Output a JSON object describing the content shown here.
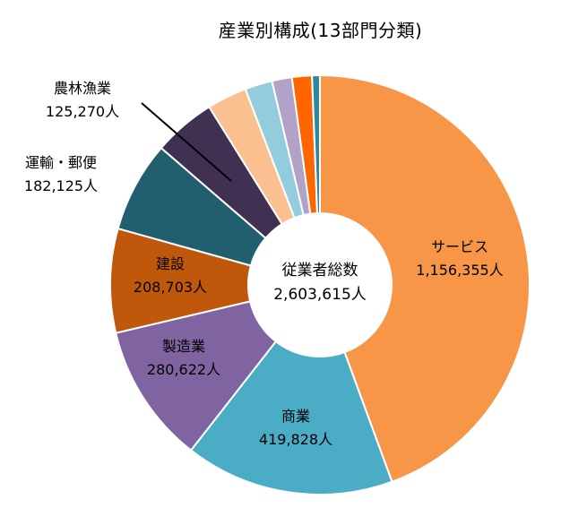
{
  "chart_data": {
    "type": "donut",
    "title": "産業別構成(13部門分類)",
    "center": {
      "label": "従業者総数",
      "value": "2,603,615人"
    },
    "total": 2603615,
    "slices": [
      {
        "name": "サービス",
        "value": 1156355,
        "value_label": "1,156,355人",
        "color": "#F79646"
      },
      {
        "name": "商業",
        "value": 419828,
        "value_label": "419,828人",
        "color": "#4BACC6"
      },
      {
        "name": "製造業",
        "value": 280622,
        "value_label": "280,622人",
        "color": "#8064A2"
      },
      {
        "name": "建設",
        "value": 208703,
        "value_label": "208,703人",
        "color": "#C0580C"
      },
      {
        "name": "運輸・郵便",
        "value": 182125,
        "value_label": "182,125人",
        "color": "#215E6E"
      },
      {
        "name": "農林漁業",
        "value": 125270,
        "value_label": "125,270人",
        "color": "#403152"
      },
      {
        "name": "",
        "value": 80000,
        "value_label": "",
        "color": "#FAC090"
      },
      {
        "name": "",
        "value": 55000,
        "value_label": "",
        "color": "#93CDDD"
      },
      {
        "name": "",
        "value": 40000,
        "value_label": "",
        "color": "#B3A2C7"
      },
      {
        "name": "",
        "value": 40000,
        "value_label": "",
        "color": "#FF6600"
      },
      {
        "name": "",
        "value": 15712,
        "value_label": "",
        "color": "#31859C"
      }
    ]
  }
}
